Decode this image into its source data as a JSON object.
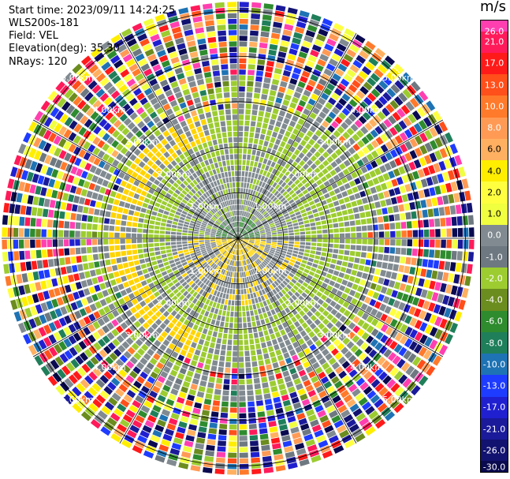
{
  "header": {
    "start_time": "Start time: 2023/09/11 14:24:25",
    "instrument": "WLS200s-181",
    "field": "Field: VEL",
    "elevation": "Elevation(deg): 35.30",
    "nrays": "NRays: 120"
  },
  "colorbar": {
    "unit": "m/s",
    "ticks": [
      "26.0",
      "21.0",
      "17.0",
      "13.0",
      "10.0",
      "8.0",
      "6.0",
      "4.0",
      "2.0",
      "1.0",
      "0.0",
      "-1.0",
      "-2.0",
      "-4.0",
      "-6.0",
      "-8.0",
      "-10.0",
      "-13.0",
      "-17.0",
      "-21.0",
      "-26.0",
      "-30.0"
    ],
    "colors": [
      "#ff3fb0",
      "#ff1a5a",
      "#ff1a1a",
      "#ff4f1a",
      "#ff7a2a",
      "#ff9a55",
      "#ffb060",
      "#ffee00",
      "#ffff40",
      "#f0ff40",
      "#808a90",
      "#6e7880",
      "#9ccc30",
      "#6b8c1e",
      "#2e8b2e",
      "#1f7f5a",
      "#1e73b4",
      "#1e3cff",
      "#2020d0",
      "#1a1a9a",
      "#121270",
      "#0a0a50"
    ]
  },
  "chart_data": {
    "type": "heatmap",
    "projection": "polar PPI",
    "field": "VEL",
    "unit": "m/s",
    "value_range": [
      -30.0,
      26.0
    ],
    "nrays": 120,
    "range_ring_labels": [
      "1.00km",
      "2.00km",
      "3.00km",
      "4.00km",
      "5.00km"
    ],
    "range_rings_km": [
      1,
      2,
      3,
      4,
      5
    ],
    "max_range_km": 5.2,
    "spokes_deg": [
      0,
      30,
      60,
      90,
      120,
      150,
      180,
      210,
      240,
      270,
      300,
      330
    ],
    "velocity_pattern": {
      "description_free": true,
      "inner_positive_core": 1.5,
      "green_band": -2.0,
      "yellow_band": 2.5,
      "outer_noise": true
    }
  }
}
